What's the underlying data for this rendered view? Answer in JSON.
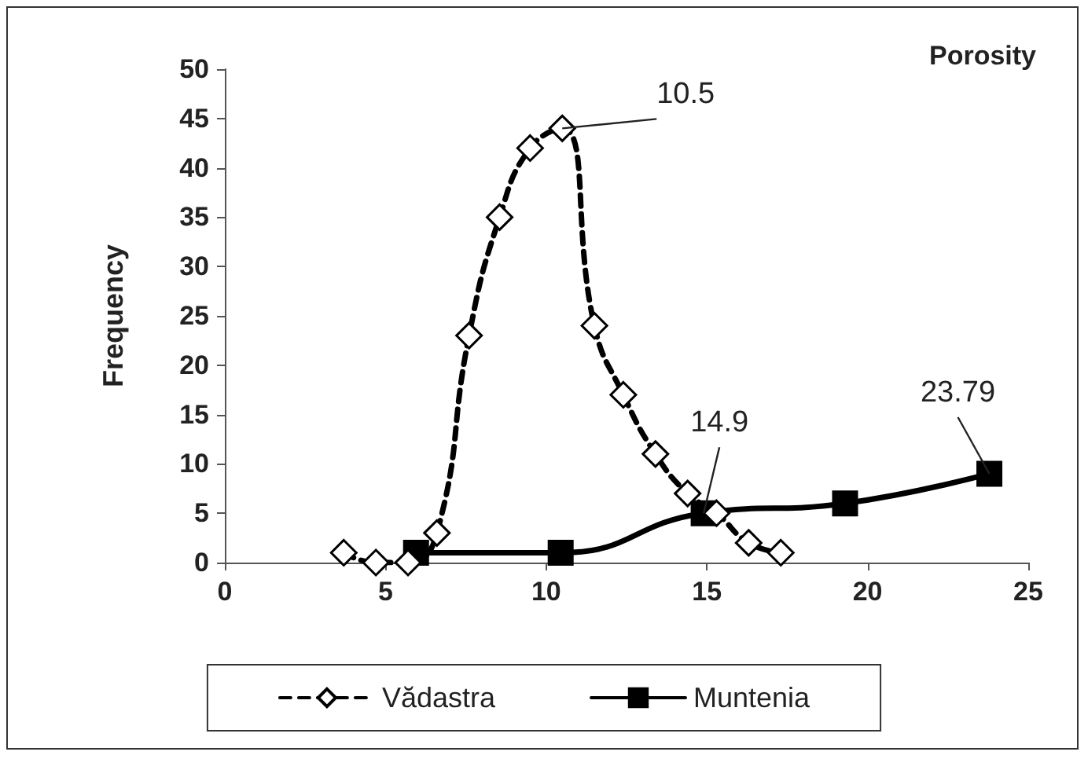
{
  "chart_data": {
    "type": "line",
    "title": "Porosity",
    "ylabel": "Frequency",
    "xlim": [
      0,
      25
    ],
    "xticks": [
      0,
      5,
      10,
      15,
      20,
      25
    ],
    "ylim": [
      0,
      50
    ],
    "yticks": [
      0,
      5,
      10,
      15,
      20,
      25,
      30,
      35,
      40,
      45,
      50
    ],
    "grid": false,
    "legend": "bottom",
    "annotations": [
      {
        "text": "10.5",
        "x": 10.5,
        "y": 44
      },
      {
        "text": "14.9",
        "x": 14.9,
        "y": 5
      },
      {
        "text": "23.79",
        "x": 23.79,
        "y": 9
      }
    ],
    "series": [
      {
        "name": "Vădastra",
        "color": "#000000",
        "marker": "diamond",
        "line_style": "dashed",
        "x": [
          3.7,
          4.7,
          5.7,
          6.6,
          7.6,
          8.55,
          9.5,
          10.5,
          11.5,
          12.4,
          13.4,
          14.4,
          15.3,
          16.3,
          17.3
        ],
        "values": [
          1,
          0,
          0,
          3,
          23,
          35,
          42,
          44,
          24,
          17,
          11,
          7,
          5,
          2,
          1
        ]
      },
      {
        "name": "Muntenia",
        "color": "#000000",
        "marker": "square",
        "line_style": "solid",
        "x": [
          5.95,
          10.45,
          14.9,
          19.3,
          23.79
        ],
        "values": [
          1,
          1,
          5,
          6,
          9
        ]
      }
    ]
  }
}
